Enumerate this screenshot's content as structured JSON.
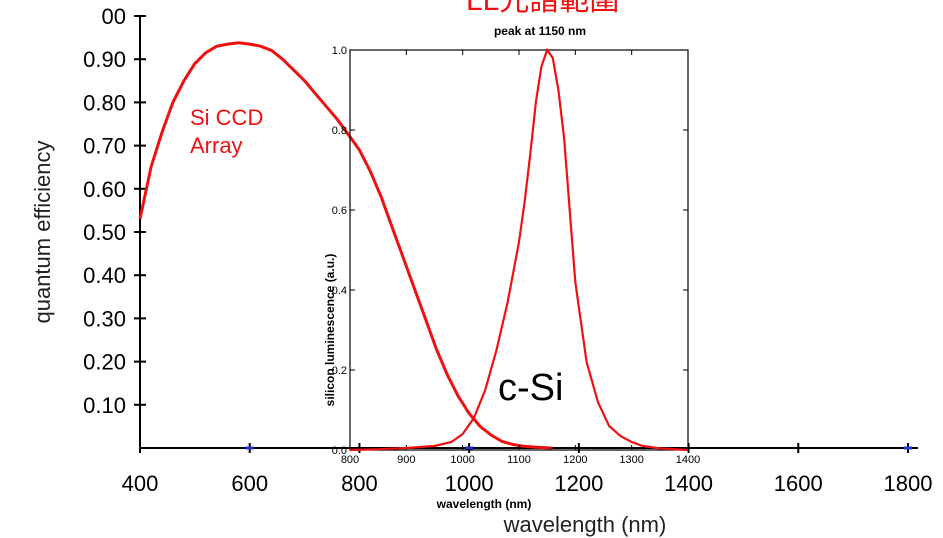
{
  "chart_data": [
    {
      "type": "line",
      "title": "",
      "xlabel": "wavelength (nm)",
      "ylabel": "quantum efficiency",
      "xlim": [
        400,
        1800
      ],
      "ylim": [
        0,
        1.0
      ],
      "x_ticks": [
        "400",
        "600",
        "800",
        "1000",
        "1200",
        "1400",
        "1600",
        "1800"
      ],
      "y_ticks": [
        "0.10",
        "0.20",
        "0.30",
        "0.40",
        "0.50",
        "0.60",
        "0.70",
        "0.80",
        "0.90",
        "00"
      ],
      "series": [
        {
          "name": "Si CCD Array",
          "color": "#ee1111",
          "x": [
            400,
            420,
            440,
            460,
            480,
            500,
            520,
            540,
            560,
            580,
            600,
            620,
            640,
            660,
            680,
            700,
            720,
            740,
            760,
            780,
            800,
            820,
            840,
            860,
            880,
            900,
            920,
            940,
            960,
            980,
            1000,
            1020,
            1040,
            1060,
            1080,
            1100,
            1120,
            1150
          ],
          "y": [
            0.53,
            0.65,
            0.73,
            0.8,
            0.85,
            0.89,
            0.915,
            0.93,
            0.935,
            0.938,
            0.935,
            0.93,
            0.92,
            0.9,
            0.875,
            0.85,
            0.82,
            0.79,
            0.76,
            0.725,
            0.69,
            0.64,
            0.58,
            0.51,
            0.44,
            0.37,
            0.3,
            0.23,
            0.17,
            0.12,
            0.08,
            0.05,
            0.03,
            0.015,
            0.008,
            0.004,
            0.002,
            0.0
          ]
        }
      ],
      "annotations": [
        "Si CCD",
        "Array"
      ]
    },
    {
      "type": "line",
      "title": "peak at 1150 nm",
      "xlabel": "wavelength (nm)",
      "ylabel": "silicon luminescence (a.u.)",
      "xlim": [
        800,
        1400
      ],
      "ylim": [
        0,
        1.0
      ],
      "x_ticks": [
        "800",
        "900",
        "1000",
        "1100",
        "1200",
        "1300",
        "1400"
      ],
      "y_ticks": [
        "0.0",
        "0.2",
        "0.4",
        "0.6",
        "0.8",
        "1.0"
      ],
      "series": [
        {
          "name": "c-Si",
          "color": "#ee1111",
          "x": [
            800,
            850,
            900,
            950,
            980,
            1000,
            1020,
            1040,
            1060,
            1080,
            1100,
            1110,
            1120,
            1130,
            1140,
            1150,
            1160,
            1170,
            1180,
            1190,
            1200,
            1220,
            1240,
            1260,
            1280,
            1300,
            1320,
            1350,
            1400
          ],
          "y": [
            0.0,
            0.002,
            0.005,
            0.01,
            0.02,
            0.04,
            0.08,
            0.15,
            0.25,
            0.37,
            0.52,
            0.62,
            0.74,
            0.87,
            0.96,
            1.0,
            0.98,
            0.9,
            0.78,
            0.6,
            0.42,
            0.22,
            0.12,
            0.06,
            0.035,
            0.02,
            0.01,
            0.004,
            0.0
          ]
        }
      ],
      "annotations": [
        "c-Si"
      ]
    }
  ],
  "header_fragment": "LL光譜範圍",
  "colors": {
    "curve": "#ee1111",
    "axis": "#000000",
    "marker": "#2233cc"
  }
}
